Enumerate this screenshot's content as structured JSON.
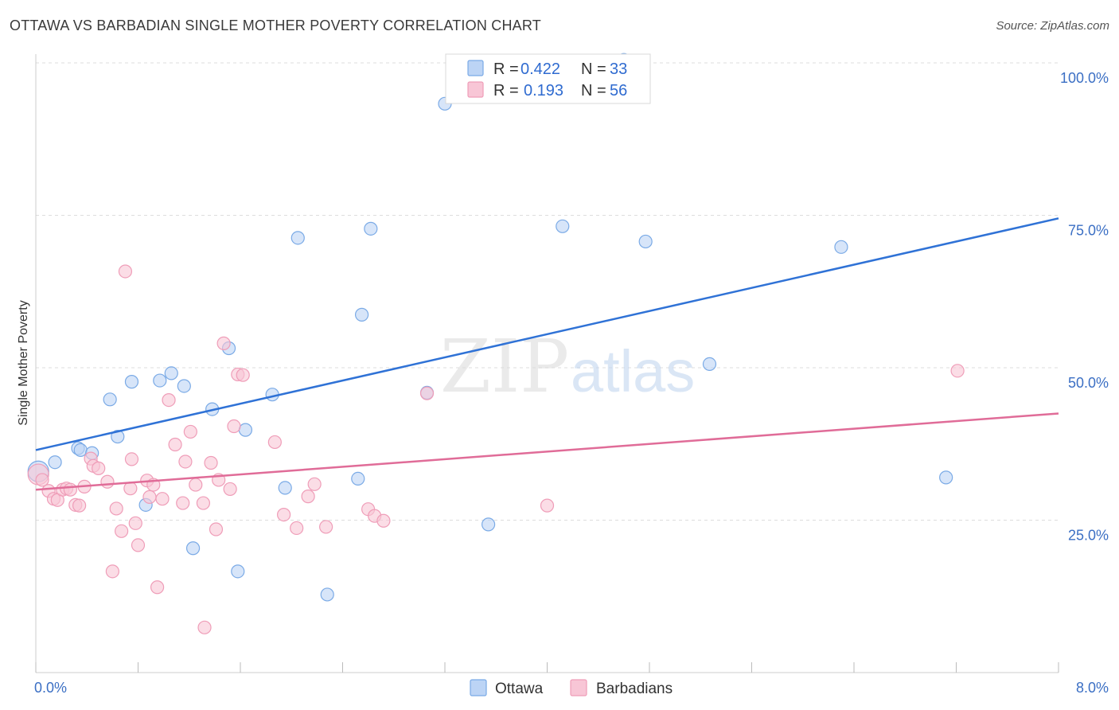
{
  "chart_data": {
    "type": "scatter",
    "title": "OTTAWA VS BARBADIAN SINGLE MOTHER POVERTY CORRELATION CHART",
    "source": "Source: ZipAtlas.com",
    "ylabel": "Single Mother Poverty",
    "xlim": [
      0,
      8
    ],
    "ylim": [
      0,
      102
    ],
    "x_tick_labels": [
      "0.0%",
      "8.0%"
    ],
    "y_ticks": [
      {
        "value": 25,
        "label": "25.0%"
      },
      {
        "value": 50,
        "label": "50.0%"
      },
      {
        "value": 75,
        "label": "75.0%"
      },
      {
        "value": 100,
        "label": "100.0%"
      }
    ],
    "watermark": {
      "zip": "ZIP",
      "atlas": "atlas"
    },
    "legend": {
      "r_label": "R =",
      "n_label": "N ="
    },
    "series": [
      {
        "name": "Ottawa",
        "color": "#7aaae6",
        "fill": "#bcd4f5",
        "line_color": "#2f72d6",
        "r": "0.422",
        "n": "33",
        "trend": {
          "x": [
            0,
            8
          ],
          "y": [
            36.5,
            74.5
          ]
        },
        "points": [
          [
            0.02,
            33.0
          ],
          [
            0.15,
            34.5
          ],
          [
            0.33,
            36.8
          ],
          [
            0.35,
            36.5
          ],
          [
            0.44,
            36.0
          ],
          [
            0.58,
            44.8
          ],
          [
            0.64,
            38.7
          ],
          [
            0.75,
            47.7
          ],
          [
            0.86,
            27.5
          ],
          [
            0.97,
            47.9
          ],
          [
            1.06,
            49.1
          ],
          [
            1.16,
            47.0
          ],
          [
            1.23,
            20.4
          ],
          [
            1.38,
            43.2
          ],
          [
            1.51,
            53.2
          ],
          [
            1.58,
            16.6
          ],
          [
            1.64,
            39.8
          ],
          [
            1.85,
            45.6
          ],
          [
            1.95,
            30.3
          ],
          [
            2.05,
            71.3
          ],
          [
            2.28,
            12.8
          ],
          [
            2.52,
            31.8
          ],
          [
            2.55,
            58.7
          ],
          [
            2.62,
            72.8
          ],
          [
            3.06,
            45.9
          ],
          [
            3.2,
            93.3
          ],
          [
            3.54,
            24.3
          ],
          [
            4.12,
            73.2
          ],
          [
            4.6,
            100.5
          ],
          [
            4.77,
            70.7
          ],
          [
            5.27,
            50.6
          ],
          [
            6.3,
            69.8
          ],
          [
            7.12,
            32.0
          ]
        ]
      },
      {
        "name": "Barbadians",
        "color": "#ef9db8",
        "fill": "#f8c6d6",
        "line_color": "#e06c98",
        "r": "0.193",
        "n": "56",
        "trend": {
          "x": [
            0,
            8
          ],
          "y": [
            30.0,
            42.5
          ]
        },
        "points": [
          [
            0.02,
            32.5
          ],
          [
            0.05,
            31.6
          ],
          [
            0.1,
            29.8
          ],
          [
            0.14,
            28.5
          ],
          [
            0.17,
            28.3
          ],
          [
            0.21,
            30.0
          ],
          [
            0.24,
            30.2
          ],
          [
            0.27,
            30.0
          ],
          [
            0.31,
            27.5
          ],
          [
            0.34,
            27.4
          ],
          [
            0.38,
            30.5
          ],
          [
            0.43,
            35.1
          ],
          [
            0.45,
            33.9
          ],
          [
            0.49,
            33.5
          ],
          [
            0.56,
            31.3
          ],
          [
            0.6,
            16.6
          ],
          [
            0.63,
            26.9
          ],
          [
            0.67,
            23.2
          ],
          [
            0.7,
            65.8
          ],
          [
            0.74,
            30.2
          ],
          [
            0.75,
            35.0
          ],
          [
            0.78,
            24.5
          ],
          [
            0.8,
            20.9
          ],
          [
            0.87,
            31.5
          ],
          [
            0.89,
            28.8
          ],
          [
            0.92,
            30.8
          ],
          [
            0.95,
            14.0
          ],
          [
            0.99,
            28.5
          ],
          [
            1.04,
            44.7
          ],
          [
            1.09,
            37.4
          ],
          [
            1.15,
            27.8
          ],
          [
            1.17,
            34.6
          ],
          [
            1.21,
            39.5
          ],
          [
            1.25,
            30.8
          ],
          [
            1.31,
            27.8
          ],
          [
            1.32,
            7.4
          ],
          [
            1.37,
            34.4
          ],
          [
            1.41,
            23.5
          ],
          [
            1.43,
            31.6
          ],
          [
            1.47,
            54.0
          ],
          [
            1.52,
            30.1
          ],
          [
            1.55,
            40.4
          ],
          [
            1.58,
            48.9
          ],
          [
            1.62,
            48.8
          ],
          [
            1.87,
            37.8
          ],
          [
            1.94,
            25.9
          ],
          [
            2.04,
            23.7
          ],
          [
            2.13,
            28.9
          ],
          [
            2.18,
            30.9
          ],
          [
            2.27,
            23.9
          ],
          [
            2.6,
            26.8
          ],
          [
            2.65,
            25.7
          ],
          [
            2.72,
            24.9
          ],
          [
            3.06,
            45.8
          ],
          [
            4.0,
            27.4
          ],
          [
            7.21,
            49.5
          ]
        ]
      }
    ]
  }
}
